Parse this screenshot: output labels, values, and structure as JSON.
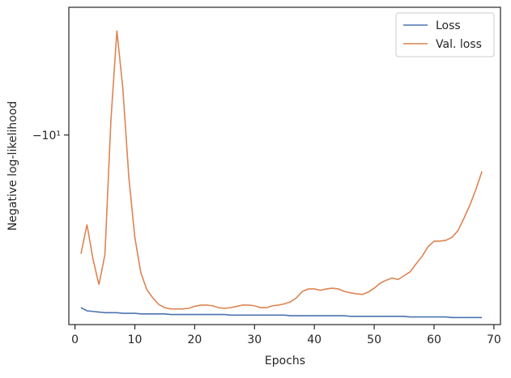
{
  "chart_data": {
    "type": "line",
    "x_label": "Epochs",
    "y_label": "Negative log-likelihood",
    "yscale": "symlog",
    "x": [
      1,
      2,
      3,
      4,
      5,
      6,
      7,
      8,
      9,
      10,
      11,
      12,
      13,
      14,
      15,
      16,
      17,
      18,
      19,
      20,
      21,
      22,
      23,
      24,
      25,
      26,
      27,
      28,
      29,
      30,
      31,
      32,
      33,
      34,
      35,
      36,
      37,
      38,
      39,
      40,
      41,
      42,
      43,
      44,
      45,
      46,
      47,
      48,
      49,
      50,
      51,
      52,
      53,
      54,
      55,
      56,
      57,
      58,
      59,
      60,
      61,
      62,
      63,
      64,
      65,
      66,
      67,
      68
    ],
    "series": [
      {
        "name": "Loss",
        "color": "#4c72b0",
        "values": [
          -27.2,
          -27.7,
          -27.8,
          -27.9,
          -28.0,
          -28.0,
          -28.0,
          -28.1,
          -28.1,
          -28.1,
          -28.2,
          -28.2,
          -28.2,
          -28.2,
          -28.2,
          -28.3,
          -28.3,
          -28.3,
          -28.3,
          -28.3,
          -28.3,
          -28.3,
          -28.3,
          -28.3,
          -28.3,
          -28.4,
          -28.4,
          -28.4,
          -28.4,
          -28.4,
          -28.4,
          -28.4,
          -28.4,
          -28.4,
          -28.4,
          -28.5,
          -28.5,
          -28.5,
          -28.5,
          -28.5,
          -28.5,
          -28.5,
          -28.5,
          -28.5,
          -28.5,
          -28.6,
          -28.6,
          -28.6,
          -28.6,
          -28.6,
          -28.6,
          -28.6,
          -28.6,
          -28.6,
          -28.6,
          -28.7,
          -28.7,
          -28.7,
          -28.7,
          -28.7,
          -28.7,
          -28.7,
          -28.8,
          -28.8,
          -28.8,
          -28.8,
          -28.8,
          -28.8
        ]
      },
      {
        "name": "Val. loss",
        "color": "#dd8452",
        "values": [
          -19.9,
          -16.8,
          -20.5,
          -23.8,
          -20.0,
          -9.2,
          -5.46,
          -7.65,
          -12.8,
          -18.1,
          -22.2,
          -24.5,
          -25.7,
          -26.7,
          -27.2,
          -27.4,
          -27.4,
          -27.4,
          -27.3,
          -27.0,
          -26.8,
          -26.8,
          -26.9,
          -27.2,
          -27.3,
          -27.2,
          -27.0,
          -26.8,
          -26.8,
          -26.9,
          -27.2,
          -27.2,
          -26.9,
          -26.8,
          -26.6,
          -26.3,
          -25.7,
          -24.75,
          -24.4,
          -24.4,
          -24.6,
          -24.4,
          -24.3,
          -24.4,
          -24.75,
          -24.95,
          -25.1,
          -25.2,
          -24.85,
          -24.3,
          -23.6,
          -23.2,
          -22.9,
          -23.1,
          -22.6,
          -22.1,
          -21.1,
          -20.2,
          -19.1,
          -18.5,
          -18.5,
          -18.4,
          -18.1,
          -17.4,
          -16.2,
          -15.0,
          -13.7,
          -12.35
        ]
      }
    ],
    "xlim": [
      -1.03,
      71.1
    ],
    "xticks": [
      0,
      10,
      20,
      30,
      40,
      50,
      60,
      70
    ],
    "ylim": [
      -30,
      -4.77
    ],
    "yticks": [
      {
        "value": -10,
        "label": "−10¹"
      }
    ],
    "legend": "upper right"
  }
}
